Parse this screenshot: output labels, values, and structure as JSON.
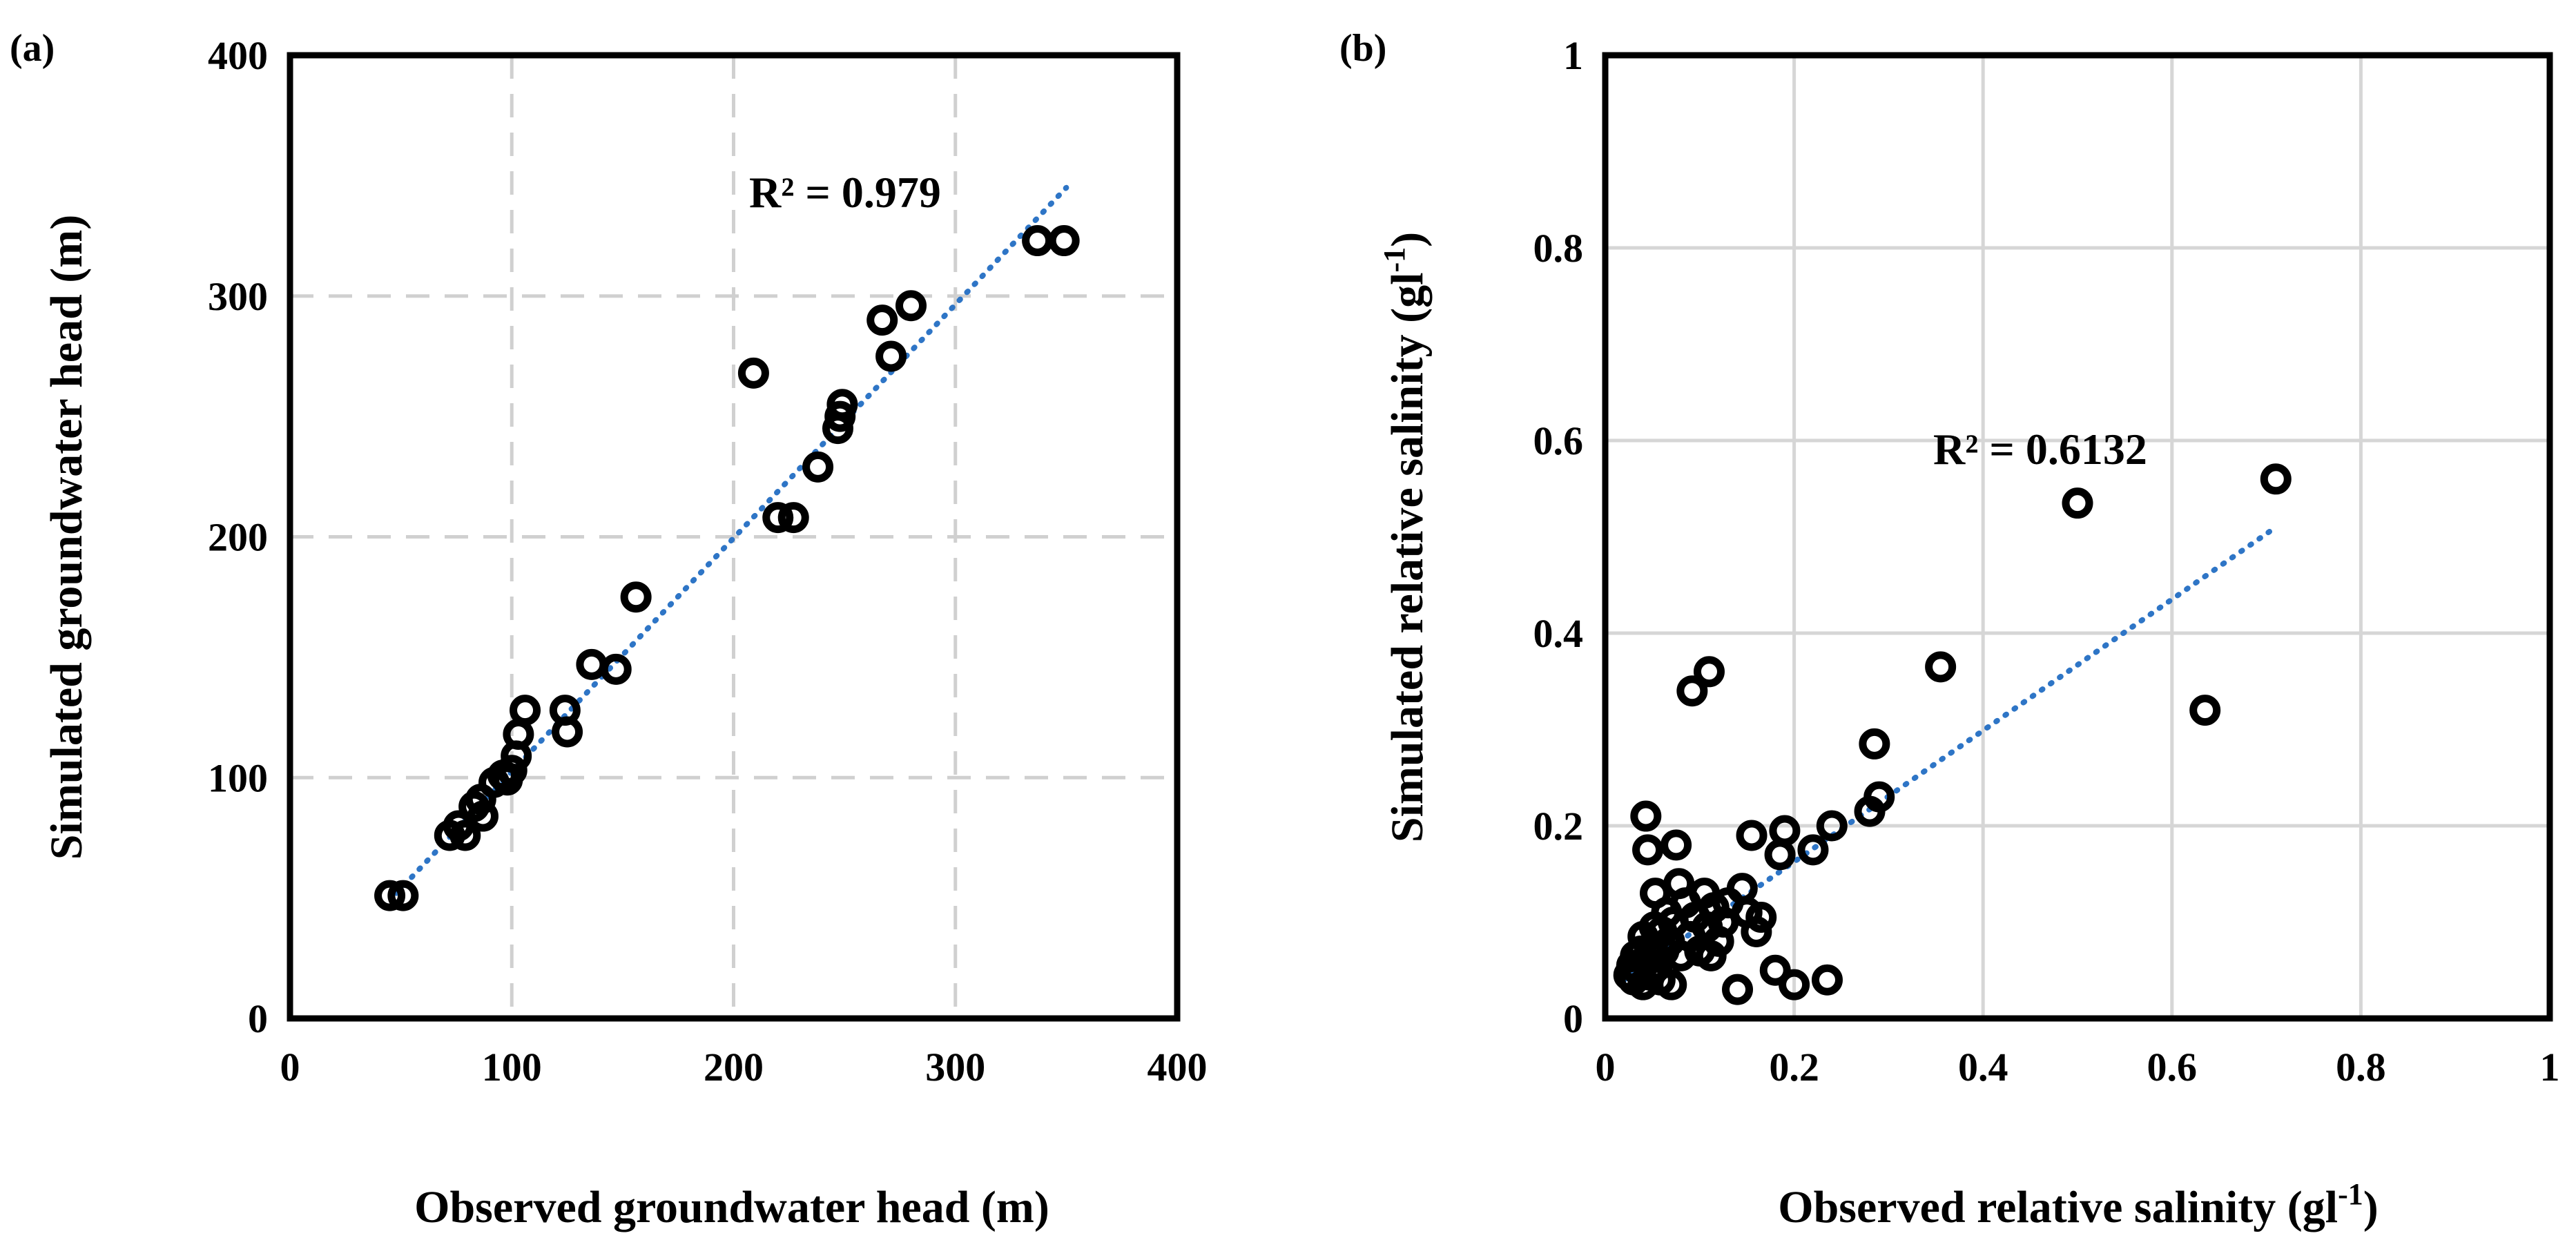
{
  "chart_data": [
    {
      "type": "scatter",
      "panel_label": "(a)",
      "xlabel": "Observed groundwater head (m)",
      "ylabel": "Simulated groundwater head (m)",
      "xlim": [
        0,
        400
      ],
      "ylim": [
        0,
        400
      ],
      "xticks": [
        "0",
        "100",
        "200",
        "300",
        "400"
      ],
      "yticks": [
        "0",
        "100",
        "200",
        "300",
        "400"
      ],
      "grid": "dashed",
      "r2_label": "R² = 0.979",
      "trendline": {
        "x": [
          48,
          350
        ],
        "y": [
          52,
          345
        ]
      },
      "points": [
        [
          45,
          51
        ],
        [
          51,
          51
        ],
        [
          72,
          76
        ],
        [
          76,
          80
        ],
        [
          79,
          76
        ],
        [
          83,
          88
        ],
        [
          86,
          91
        ],
        [
          87,
          84
        ],
        [
          92,
          98
        ],
        [
          96,
          101
        ],
        [
          98,
          99
        ],
        [
          100,
          103
        ],
        [
          102,
          109
        ],
        [
          103,
          118
        ],
        [
          106,
          128
        ],
        [
          124,
          128
        ],
        [
          125,
          119
        ],
        [
          136,
          147
        ],
        [
          147,
          145
        ],
        [
          156,
          175
        ],
        [
          209,
          268
        ],
        [
          220,
          208
        ],
        [
          227,
          208
        ],
        [
          238,
          229
        ],
        [
          247,
          245
        ],
        [
          248,
          250
        ],
        [
          249,
          255
        ],
        [
          267,
          290
        ],
        [
          271,
          275
        ],
        [
          280,
          296
        ],
        [
          337,
          323
        ],
        [
          349,
          323
        ]
      ]
    },
    {
      "type": "scatter",
      "panel_label": "(b)",
      "xlabel": "Observed relative salinity (gl-1)",
      "ylabel": "Simulated relative salinity (gl-1)",
      "xlim": [
        0,
        1
      ],
      "ylim": [
        0,
        1
      ],
      "xticks": [
        "0",
        "0.2",
        "0.4",
        "0.6",
        "0.8",
        "1"
      ],
      "yticks": [
        "0",
        "0.2",
        "0.4",
        "0.6",
        "0.8",
        "1"
      ],
      "grid": "solid",
      "r2_label": "R² = 0.6132",
      "trendline": {
        "x": [
          0.02,
          0.71
        ],
        "y": [
          0.04,
          0.51
        ]
      },
      "points": [
        [
          0.025,
          0.045
        ],
        [
          0.028,
          0.055
        ],
        [
          0.03,
          0.04
        ],
        [
          0.032,
          0.065
        ],
        [
          0.035,
          0.05
        ],
        [
          0.038,
          0.07
        ],
        [
          0.04,
          0.035
        ],
        [
          0.04,
          0.085
        ],
        [
          0.042,
          0.06
        ],
        [
          0.043,
          0.21
        ],
        [
          0.045,
          0.175
        ],
        [
          0.047,
          0.045
        ],
        [
          0.05,
          0.075
        ],
        [
          0.052,
          0.095
        ],
        [
          0.053,
          0.13
        ],
        [
          0.055,
          0.055
        ],
        [
          0.058,
          0.04
        ],
        [
          0.06,
          0.09
        ],
        [
          0.062,
          0.07
        ],
        [
          0.065,
          0.11
        ],
        [
          0.068,
          0.08
        ],
        [
          0.07,
          0.035
        ],
        [
          0.072,
          0.1
        ],
        [
          0.075,
          0.18
        ],
        [
          0.078,
          0.14
        ],
        [
          0.08,
          0.065
        ],
        [
          0.085,
          0.12
        ],
        [
          0.09,
          0.085
        ],
        [
          0.092,
          0.34
        ],
        [
          0.095,
          0.105
        ],
        [
          0.1,
          0.07
        ],
        [
          0.105,
          0.13
        ],
        [
          0.108,
          0.095
        ],
        [
          0.11,
          0.36
        ],
        [
          0.112,
          0.065
        ],
        [
          0.115,
          0.115
        ],
        [
          0.12,
          0.08
        ],
        [
          0.125,
          0.1
        ],
        [
          0.13,
          0.12
        ],
        [
          0.14,
          0.03
        ],
        [
          0.145,
          0.135
        ],
        [
          0.15,
          0.11
        ],
        [
          0.155,
          0.19
        ],
        [
          0.16,
          0.09
        ],
        [
          0.165,
          0.105
        ],
        [
          0.18,
          0.05
        ],
        [
          0.185,
          0.17
        ],
        [
          0.19,
          0.195
        ],
        [
          0.2,
          0.035
        ],
        [
          0.22,
          0.175
        ],
        [
          0.235,
          0.04
        ],
        [
          0.24,
          0.2
        ],
        [
          0.28,
          0.215
        ],
        [
          0.285,
          0.285
        ],
        [
          0.29,
          0.23
        ],
        [
          0.355,
          0.365
        ],
        [
          0.5,
          0.535
        ],
        [
          0.635,
          0.32
        ],
        [
          0.71,
          0.56
        ]
      ]
    }
  ]
}
